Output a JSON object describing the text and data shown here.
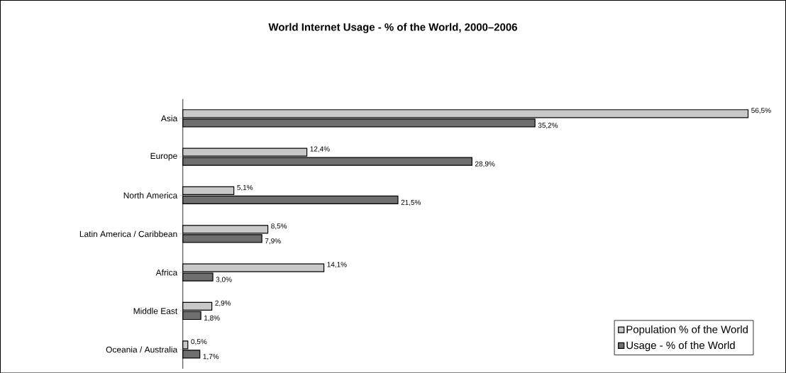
{
  "chart_data": {
    "type": "bar",
    "orientation": "horizontal",
    "title": "World Internet Usage - % of the World, 2000–2006",
    "categories": [
      "Asia",
      "Europe",
      "North America",
      "Latin America / Caribbean",
      "Africa",
      "Middle East",
      "Oceania / Australia"
    ],
    "series": [
      {
        "name": "Population % of the World",
        "color": "#c8c8c8",
        "values": [
          56.5,
          12.4,
          5.1,
          8.5,
          14.1,
          2.9,
          0.5
        ],
        "value_labels": [
          "56,5%",
          "12,4%",
          "5,1%",
          "8,5%",
          "14,1%",
          "2,9%",
          "0,5%"
        ]
      },
      {
        "name": "Usage - % of the World",
        "color": "#6e6e6e",
        "values": [
          35.2,
          28.9,
          21.5,
          7.9,
          3.0,
          1.8,
          1.7
        ],
        "value_labels": [
          "35,2%",
          "28,9%",
          "21,5%",
          "7,9%",
          "3,0%",
          "1,8%",
          "1,7%"
        ]
      }
    ],
    "legend": "bottom right",
    "tick_labels": "y"
  }
}
